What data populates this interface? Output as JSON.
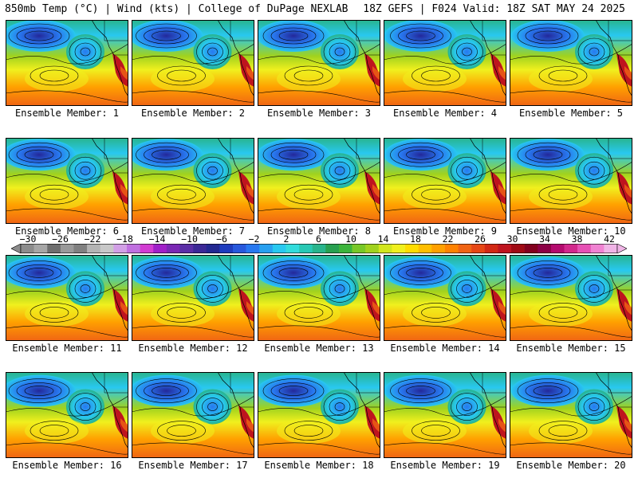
{
  "header": {
    "left": "850mb Temp (°C) | Wind (kts) | College of DuPage NEXLAB",
    "right": "18Z GEFS | F024 Valid: 18Z SAT MAY 24 2025"
  },
  "caption_prefix": "Ensemble Member: ",
  "members": [
    1,
    2,
    3,
    4,
    5,
    6,
    7,
    8,
    9,
    10,
    11,
    12,
    13,
    14,
    15,
    16,
    17,
    18,
    19,
    20
  ],
  "colorbar": {
    "tick_labels": [
      "−30",
      "−26",
      "−22",
      "−18",
      "−14",
      "−10",
      "−6",
      "−2",
      "2",
      "6",
      "10",
      "14",
      "18",
      "22",
      "26",
      "30",
      "34",
      "38",
      "42"
    ],
    "colors": [
      "#8c8c8c",
      "#a6a6a6",
      "#6e6e6e",
      "#9a9a9a",
      "#808080",
      "#b4b4b4",
      "#c8c8c8",
      "#d2a0e6",
      "#c070e0",
      "#d23cd2",
      "#a020c8",
      "#7a28b4",
      "#5a2ea6",
      "#3c2896",
      "#232891",
      "#1e3cbe",
      "#2858dc",
      "#2878f0",
      "#28a0f0",
      "#28c8f0",
      "#32dcdc",
      "#28c8b4",
      "#28b48c",
      "#28a050",
      "#3cb43c",
      "#78c828",
      "#a0d21e",
      "#d2e61e",
      "#f0f01e",
      "#ffdc00",
      "#ffbe00",
      "#ffa000",
      "#ff8200",
      "#f06414",
      "#e64614",
      "#d22814",
      "#be141e",
      "#a00a14",
      "#82001e",
      "#8c0046",
      "#b40a6e",
      "#d2288c",
      "#e650b4",
      "#f082d2",
      "#f0b4e6"
    ]
  },
  "map_colors": {
    "cold_core": "#23289a",
    "cold_mid": "#2878f0",
    "cool": "#28c8f0",
    "teal": "#28b48c",
    "green": "#a0d21e",
    "yellow": "#f0f01e",
    "orange": "#ffa000",
    "warm": "#f06414",
    "hot": "#be141e",
    "contour": "#000000",
    "coast": "#000000"
  }
}
